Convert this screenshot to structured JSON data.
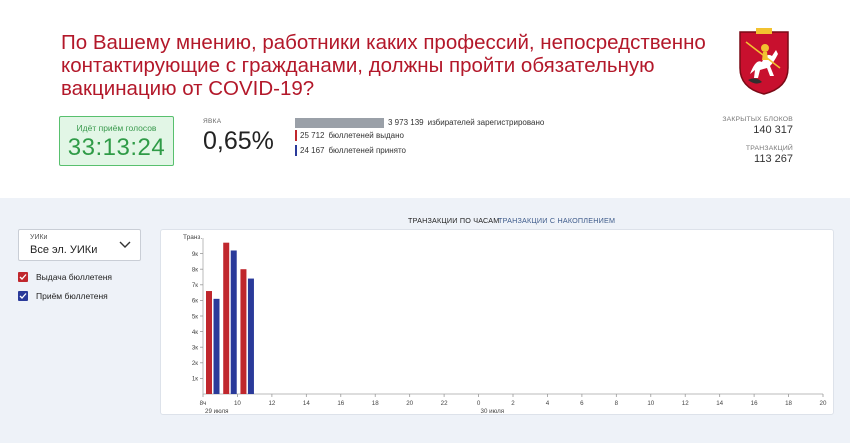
{
  "header": {
    "title": "По Вашему мнению, работники каких профессий, непосредственно контактирующие с гражданами, должны пройти обязательную вакцинацию от COVID-19?",
    "emblem_icon": "moscow-coat-of-arms-icon"
  },
  "status": {
    "voting_label": "Идёт приём голосов",
    "timer": "33:13:24"
  },
  "turnout": {
    "label": "ЯВКА",
    "value": "0,65%"
  },
  "stats": [
    {
      "value": "3 973 139",
      "text": "избирателей зарегистрировано",
      "fill": 1.0,
      "color": "#9aa0a8"
    },
    {
      "value": "25 712",
      "text": "бюллетеней выдано",
      "fill": 0.0065,
      "color": "#c0272d"
    },
    {
      "value": "24 167",
      "text": "бюллетеней принято",
      "fill": 0.0061,
      "color": "#2a3a9a"
    }
  ],
  "blocks": {
    "closed_label": "ЗАКРЫТЫХ БЛОКОВ",
    "closed_value": "140 317",
    "tx_label": "ТРАНЗАКЦИЙ",
    "tx_value": "113 267"
  },
  "filter": {
    "label": "УИКи",
    "value": "Все эл. УИКи"
  },
  "legend": [
    {
      "label": "Выдача бюллетеня",
      "color": "#c0272d"
    },
    {
      "label": "Приём бюллетеня",
      "color": "#2a3a9a"
    }
  ],
  "tabs": [
    {
      "label": "ТРАНЗАКЦИИ ПО ЧАСАМ",
      "active": true
    },
    {
      "label": "ТРАНЗАКЦИИ С НАКОПЛЕНИЕМ",
      "active": false
    }
  ],
  "chart_data": {
    "type": "bar",
    "ylabel": "Транз.",
    "y_ticks": [
      "1к",
      "2к",
      "3к",
      "4к",
      "5к",
      "6к",
      "7к",
      "8к",
      "9к"
    ],
    "ylim": [
      0,
      10000
    ],
    "x_ticks": [
      "8ч",
      "10",
      "12",
      "14",
      "16",
      "18",
      "20",
      "22",
      "0",
      "2",
      "4",
      "6",
      "8",
      "10",
      "12",
      "14",
      "16",
      "18",
      "20"
    ],
    "date_labels": [
      "29 июля",
      "30 июля"
    ],
    "categories": [
      "8ч",
      "9",
      "10",
      "11"
    ],
    "series": [
      {
        "name": "Выдача бюллетеня",
        "color": "#c0272d",
        "values": [
          6600,
          9700,
          8000,
          0
        ]
      },
      {
        "name": "Приём бюллетеня",
        "color": "#2a3a9a",
        "values": [
          6100,
          9200,
          7400,
          0
        ]
      }
    ],
    "grid": false,
    "legend": "left"
  }
}
